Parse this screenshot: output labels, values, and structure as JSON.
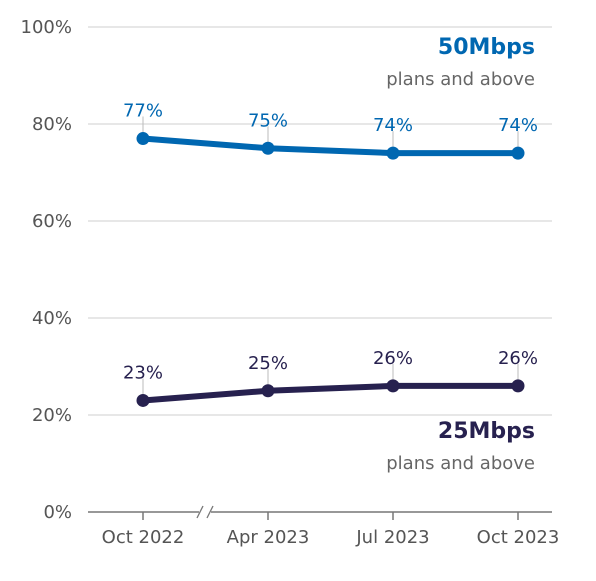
{
  "chart_data": {
    "type": "line",
    "categories": [
      "Oct 2022",
      "Apr 2023",
      "Jul 2023",
      "Oct 2023"
    ],
    "ylim": [
      0,
      100
    ],
    "yticks": [
      "0%",
      "20%",
      "40%",
      "60%",
      "80%",
      "100%"
    ],
    "ytick_values": [
      0,
      20,
      40,
      60,
      80,
      100
    ],
    "grid": true,
    "axis_break": "between Oct 2022 and Apr 2023",
    "series": [
      {
        "name": "50Mbps",
        "subtitle": "plans and above",
        "values": [
          77,
          75,
          74,
          74
        ],
        "labels": [
          "77%",
          "75%",
          "74%",
          "74%"
        ],
        "color": "#0067B1"
      },
      {
        "name": "25Mbps",
        "subtitle": "plans and above",
        "values": [
          23,
          25,
          26,
          26
        ],
        "labels": [
          "23%",
          "25%",
          "26%",
          "26%"
        ],
        "color": "#27214F"
      }
    ]
  }
}
